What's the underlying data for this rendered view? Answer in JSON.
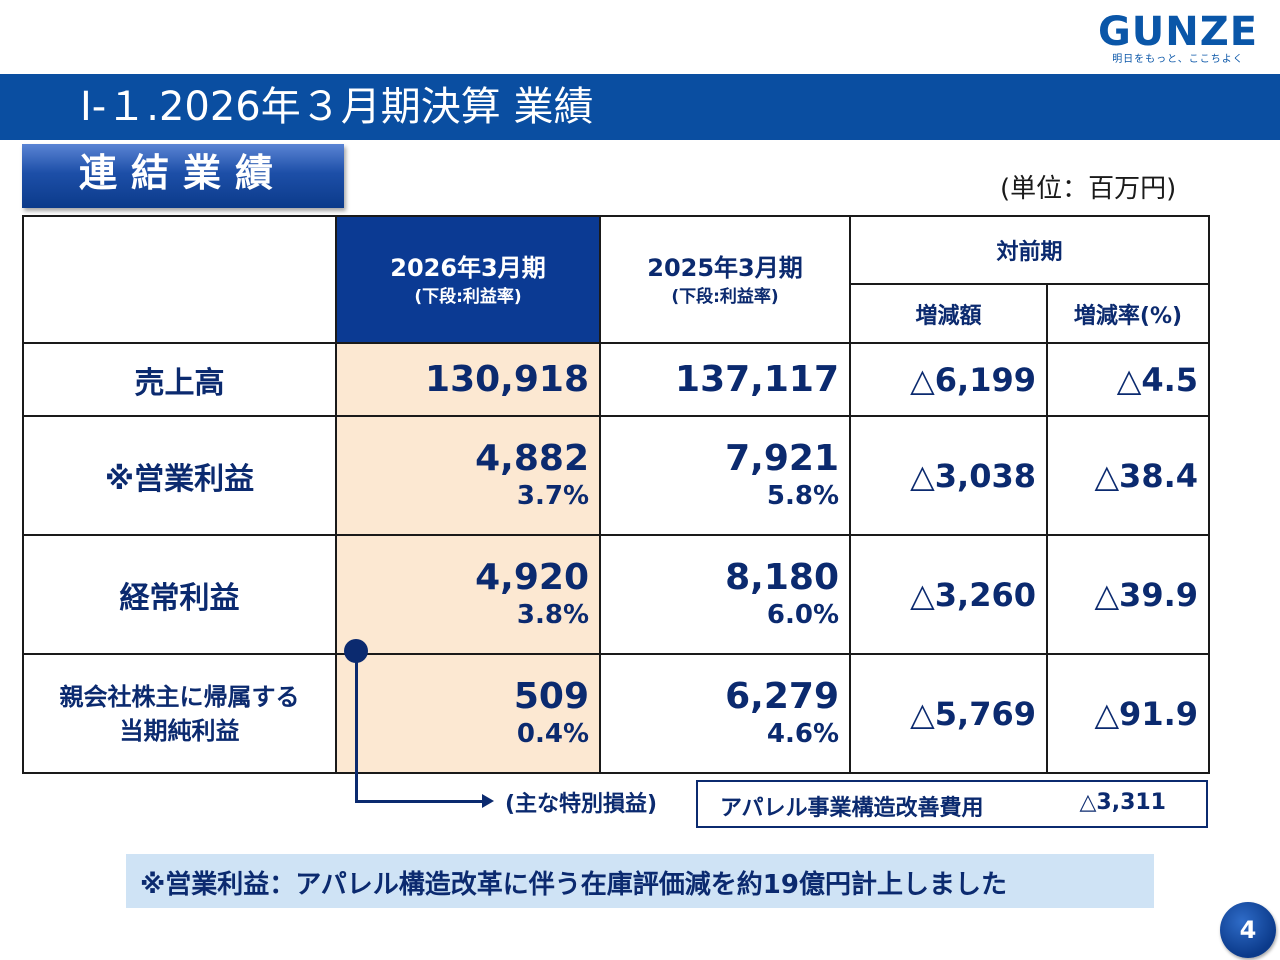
{
  "logo": {
    "word": "GUNZE",
    "tagline": "明日をもっと、ここちよく"
  },
  "title": "Ⅰ-１.2026年３月期決算 業績",
  "section_label": "連結業績",
  "unit": "(単位：百万円)",
  "table": {
    "headers": {
      "current": {
        "main": "2026年3月期",
        "sub": "(下段:利益率)"
      },
      "previous": {
        "main": "2025年3月期",
        "sub": "(下段:利益率)"
      },
      "yoy": "対前期",
      "change": "増減額",
      "change_rate": "増減率(%)"
    },
    "rows": [
      {
        "label": "売上高",
        "current": "130,918",
        "current_margin": "",
        "previous": "137,117",
        "previous_margin": "",
        "change": "△6,199",
        "change_rate": "△4.5"
      },
      {
        "label": "※営業利益",
        "current": "4,882",
        "current_margin": "3.7%",
        "previous": "7,921",
        "previous_margin": "5.8%",
        "change": "△3,038",
        "change_rate": "△38.4"
      },
      {
        "label": "経常利益",
        "current": "4,920",
        "current_margin": "3.8%",
        "previous": "8,180",
        "previous_margin": "6.0%",
        "change": "△3,260",
        "change_rate": "△39.9"
      },
      {
        "label_line1": "親会社株主に帰属する",
        "label_line2": "当期純利益",
        "current": "509",
        "current_margin": "0.4%",
        "previous": "6,279",
        "previous_margin": "4.6%",
        "change": "△5,769",
        "change_rate": "△91.9"
      }
    ]
  },
  "special": {
    "label": "(主な特別損益)",
    "item": "アパレル事業構造改善費用",
    "value": "△3,311"
  },
  "note": "※営業利益：アパレル構造改革に伴う在庫評価減を約19億円計上しました",
  "page_number": "4",
  "colors": {
    "brand_blue": "#0a4ea1",
    "header_navy": "#0b3a93",
    "text_navy": "#0b2a6f",
    "current_col_fill": "#fce8d2",
    "note_fill": "#cfe3f5"
  }
}
